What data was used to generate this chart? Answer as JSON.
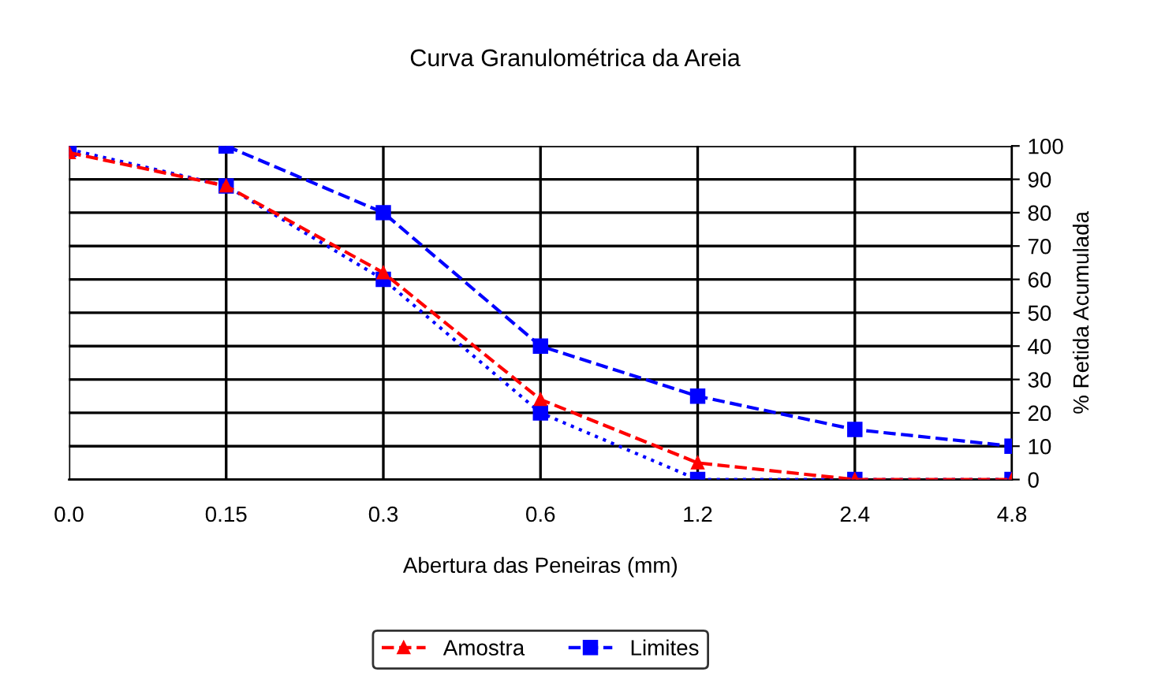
{
  "chart_data": {
    "type": "line",
    "title": "Curva Granulométrica da Areia",
    "xlabel": "Abertura das Peneiras (mm)",
    "y2label": "% Retida Acumulada",
    "categories": [
      "0.0",
      "0.15",
      "0.3",
      "0.6",
      "1.2",
      "2.4",
      "4.8"
    ],
    "series": [
      {
        "name": "Amostra",
        "color": "#ff0000",
        "marker": "triangle",
        "line_style": "dashed",
        "axis": "y2",
        "values": [
          98,
          88,
          62,
          24,
          5,
          0,
          0
        ]
      },
      {
        "name": "Limites",
        "color": "#0000ff",
        "marker": "square",
        "line_style": "dashed",
        "axis": "y2",
        "values": [
          null,
          100,
          80,
          40,
          25,
          15,
          10
        ]
      },
      {
        "color": "#0000ff",
        "marker": "square",
        "line_style": "dotted",
        "axis": "y2",
        "values": [
          99,
          88,
          60,
          20,
          0,
          0,
          0
        ]
      }
    ],
    "y2lim": [
      0,
      100
    ],
    "y2ticks": [
      0,
      10,
      20,
      30,
      40,
      50,
      60,
      70,
      80,
      90,
      100
    ],
    "grid": true,
    "legend": "bottom"
  }
}
